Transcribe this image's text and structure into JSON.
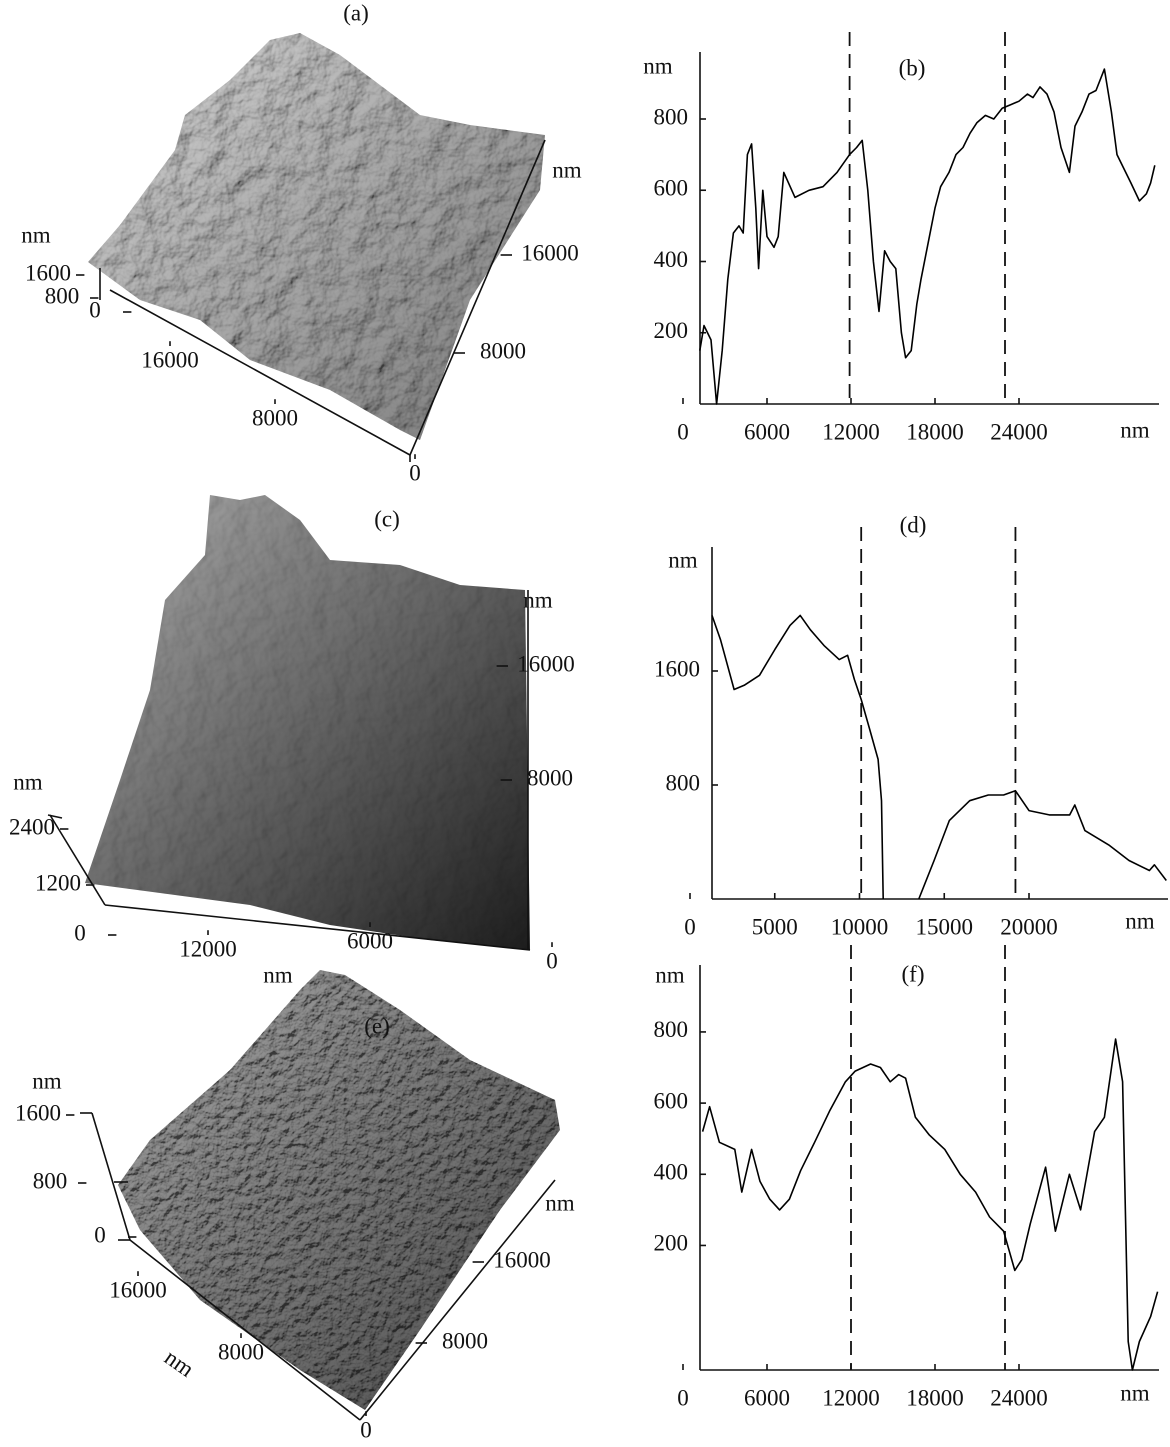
{
  "chart_data": [
    {
      "type": "surface",
      "title": "(a)",
      "zlabel": "nm",
      "zticks": [
        0,
        800,
        1600
      ],
      "xticks": [
        0,
        8000,
        16000
      ],
      "yticks": [
        8000,
        16000
      ],
      "ylabel": "nm",
      "shade": [
        "#d8d8d8",
        "#7a7a7a"
      ]
    },
    {
      "type": "line",
      "title": "(b)",
      "ylabel": "nm",
      "xlabel": "nm",
      "xlim": [
        0,
        34000
      ],
      "ylim": [
        0,
        960
      ],
      "xticks": [
        0,
        6000,
        12000,
        18000,
        24000
      ],
      "yticks": [
        200,
        400,
        600,
        800
      ],
      "vlines": [
        11900,
        23000
      ],
      "color": "#000000",
      "x": [
        1200,
        1500,
        2000,
        2400,
        2800,
        3200,
        3600,
        4000,
        4300,
        4600,
        4900,
        5200,
        5400,
        5700,
        6000,
        6500,
        6800,
        7200,
        8000,
        9000,
        10000,
        11000,
        11900,
        12400,
        12800,
        13200,
        13600,
        14000,
        14400,
        14800,
        15200,
        15600,
        15900,
        16300,
        16700,
        17000,
        17500,
        18000,
        18400,
        19000,
        19500,
        20000,
        20500,
        21000,
        21600,
        22200,
        22800,
        23400,
        24000,
        24600,
        25000,
        25500,
        26000,
        26500,
        27000,
        27600,
        28000,
        28500,
        29000,
        29500,
        30100,
        30600,
        31000,
        31500,
        32000,
        32600,
        33100,
        33400,
        33700
      ],
      "values": [
        150,
        220,
        180,
        0,
        150,
        350,
        480,
        500,
        480,
        700,
        730,
        550,
        380,
        600,
        470,
        440,
        470,
        650,
        580,
        600,
        610,
        650,
        700,
        720,
        740,
        600,
        400,
        260,
        430,
        400,
        380,
        200,
        130,
        150,
        280,
        350,
        450,
        550,
        610,
        650,
        700,
        720,
        760,
        790,
        810,
        800,
        830,
        840,
        850,
        870,
        860,
        890,
        870,
        820,
        720,
        650,
        780,
        820,
        870,
        880,
        940,
        820,
        700,
        660,
        620,
        570,
        590,
        620,
        670
      ]
    },
    {
      "type": "surface",
      "title": "(c)",
      "zlabel": "nm",
      "zticks": [
        0,
        1200,
        2400
      ],
      "xticks": [
        0,
        6000,
        12000
      ],
      "xlabel": "nm",
      "yticks": [
        8000,
        16000
      ],
      "ylabel": "nm",
      "shade": [
        "#b0b0b0",
        "#1e1e1e"
      ]
    },
    {
      "type": "line",
      "title": "(d)",
      "ylabel": "nm",
      "xlabel": "nm",
      "xlim": [
        0,
        28200
      ],
      "ylim": [
        0,
        2400
      ],
      "xticks": [
        0,
        5000,
        10000,
        15000,
        20000
      ],
      "yticks": [
        800,
        1600
      ],
      "vlines": [
        10100,
        19200
      ],
      "color": "#000000",
      "x": [
        1300,
        1800,
        2600,
        3200,
        4100,
        5000,
        5900,
        6500,
        7100,
        7900,
        8800,
        9300,
        9700,
        10100,
        10600,
        11100,
        11300,
        11400,
        12500,
        13500,
        14400,
        15300,
        16500,
        17600,
        18500,
        19200,
        20000,
        21200,
        22400,
        22700,
        23300,
        24700,
        25900,
        27100,
        27400,
        28100
      ],
      "values": [
        1990,
        1820,
        1470,
        1500,
        1570,
        1750,
        1920,
        1990,
        1890,
        1780,
        1680,
        1710,
        1540,
        1400,
        1190,
        980,
        690,
        0,
        null,
        0,
        270,
        550,
        690,
        730,
        730,
        760,
        620,
        590,
        590,
        660,
        480,
        380,
        270,
        200,
        240,
        130
      ]
    },
    {
      "type": "surface",
      "title": "(e)",
      "zlabel": "nm",
      "zticks": [
        0,
        800,
        1600
      ],
      "xticks": [
        0,
        8000,
        16000
      ],
      "xlabel": "nm",
      "yticks": [
        8000,
        16000
      ],
      "ylabel": "nm",
      "shade": [
        "#a8a8a8",
        "#4a4a4a"
      ]
    },
    {
      "type": "line",
      "title": "(f)",
      "ylabel": "nm",
      "xlabel": "nm",
      "xlim": [
        0,
        34000
      ],
      "ylim": [
        -150,
        960
      ],
      "xticks": [
        0,
        6000,
        12000,
        18000,
        24000
      ],
      "yticks": [
        200,
        400,
        600,
        800
      ],
      "vlines": [
        12000,
        23000
      ],
      "color": "#000000",
      "x": [
        1400,
        1900,
        2600,
        3700,
        4200,
        4900,
        5500,
        6200,
        6900,
        7600,
        8400,
        9400,
        10500,
        11600,
        12300,
        13400,
        14100,
        14800,
        15400,
        15900,
        16600,
        17600,
        18700,
        19800,
        20900,
        21900,
        22900,
        23700,
        24200,
        24800,
        25900,
        26600,
        27600,
        28400,
        29400,
        30100,
        30900,
        31400,
        31800,
        32100,
        32600,
        33400,
        33900
      ],
      "values": [
        520,
        590,
        490,
        470,
        350,
        470,
        380,
        330,
        300,
        330,
        410,
        490,
        580,
        660,
        690,
        710,
        700,
        660,
        680,
        670,
        560,
        510,
        470,
        400,
        350,
        280,
        240,
        130,
        160,
        260,
        420,
        240,
        400,
        300,
        520,
        560,
        780,
        660,
        -70,
        -150,
        -70,
        0,
        70
      ]
    }
  ]
}
